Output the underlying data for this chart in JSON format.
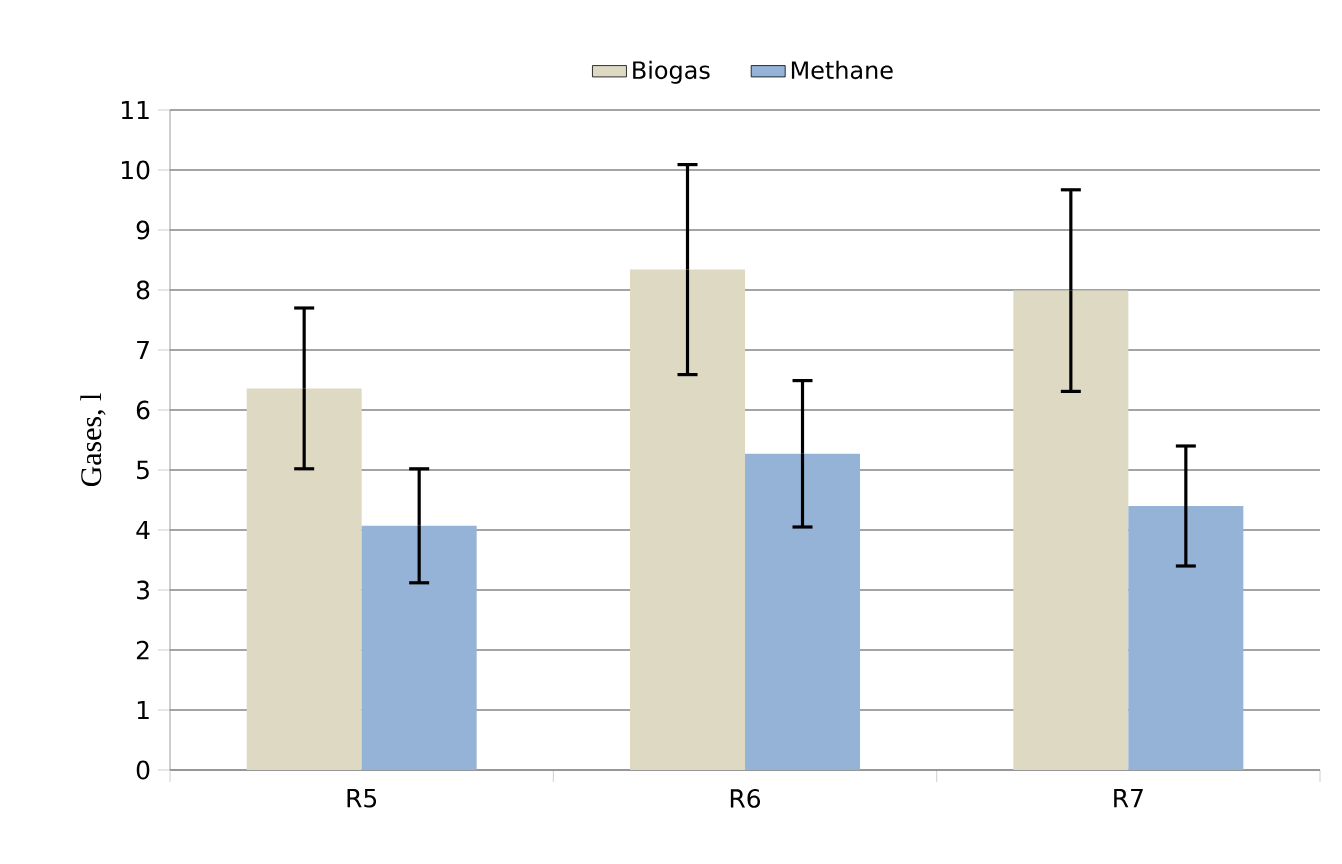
{
  "chart_data": {
    "type": "bar",
    "ylabel": "Gases, l",
    "categories": [
      "R5",
      "R6",
      "R7"
    ],
    "series": [
      {
        "name": "Biogas",
        "color": "#ddd9c3",
        "values": [
          6.36,
          8.34,
          7.99
        ],
        "errors": [
          1.34,
          1.75,
          1.68
        ]
      },
      {
        "name": "Methane",
        "color": "#95b3d7",
        "values": [
          4.07,
          5.27,
          4.4
        ],
        "errors": [
          0.95,
          1.22,
          1.0
        ]
      }
    ],
    "ylim": [
      0,
      11
    ],
    "yticks": [
      0,
      1,
      2,
      3,
      4,
      5,
      6,
      7,
      8,
      9,
      10,
      11
    ],
    "grid": "y",
    "legend": "top"
  }
}
